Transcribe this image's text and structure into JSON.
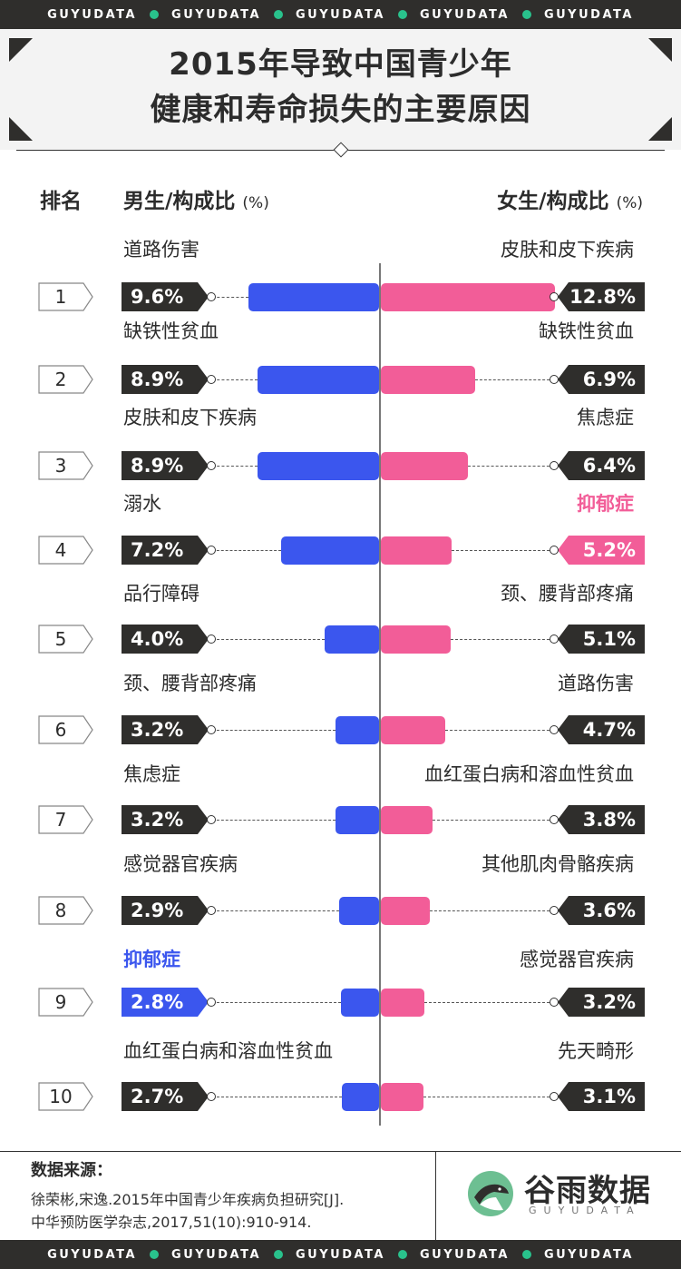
{
  "brand_band": [
    "GUYUDATA",
    "GUYUDATA",
    "GUYUDATA",
    "GUYUDATA",
    "GUYUDATA"
  ],
  "title_line1": "2015年导致中国青少年",
  "title_line2": "健康和寿命损失的主要原因",
  "columns": {
    "rank": "排名",
    "male": "男生/构成比",
    "female": "女生/构成比",
    "unit": "(%)"
  },
  "colors": {
    "male": "#3b56ee",
    "female": "#f25d98",
    "dark": "#2f2e2c",
    "accent_dot": "#29c28c",
    "logo_green": "#6dbf92"
  },
  "chart_data": {
    "type": "bar",
    "orientation": "horizontal-diverging",
    "unit": "%",
    "xlim": [
      0,
      15
    ],
    "categories": [
      "1",
      "2",
      "3",
      "4",
      "5",
      "6",
      "7",
      "8",
      "9",
      "10"
    ],
    "series": [
      {
        "name": "男生",
        "labels": [
          "道路伤害",
          "缺铁性贫血",
          "皮肤和皮下疾病",
          "溺水",
          "品行障碍",
          "颈、腰背部疼痛",
          "焦虑症",
          "感觉器官疾病",
          "抑郁症",
          "血红蛋白病和溶血性贫血"
        ],
        "values": [
          9.6,
          8.9,
          8.9,
          7.2,
          4.0,
          3.2,
          3.2,
          2.9,
          2.8,
          2.7
        ],
        "value_labels": [
          "9.6%",
          "8.9%",
          "8.9%",
          "7.2%",
          "4.0%",
          "3.2%",
          "3.2%",
          "2.9%",
          "2.8%",
          "2.7%"
        ],
        "highlight_index": 8
      },
      {
        "name": "女生",
        "labels": [
          "皮肤和皮下疾病",
          "缺铁性贫血",
          "焦虑症",
          "抑郁症",
          "颈、腰背部疼痛",
          "道路伤害",
          "血红蛋白病和溶血性贫血",
          "其他肌肉骨骼疾病",
          "感觉器官疾病",
          "先天畸形"
        ],
        "values": [
          12.8,
          6.9,
          6.4,
          5.2,
          5.1,
          4.7,
          3.8,
          3.6,
          3.2,
          3.1
        ],
        "value_labels": [
          "12.8%",
          "6.9%",
          "6.4%",
          "5.2%",
          "5.1%",
          "4.7%",
          "3.8%",
          "3.6%",
          "3.2%",
          "3.1%"
        ],
        "highlight_index": 3
      }
    ]
  },
  "footer": {
    "source_title": "数据来源：",
    "source_line1": "徐荣彬,宋逸.2015年中国青少年疾病负担研究[J].",
    "source_line2": "中华预防医学杂志,2017,51(10):910-914.",
    "logo_cn": "谷雨数据",
    "logo_en": "GUYUDATA"
  }
}
